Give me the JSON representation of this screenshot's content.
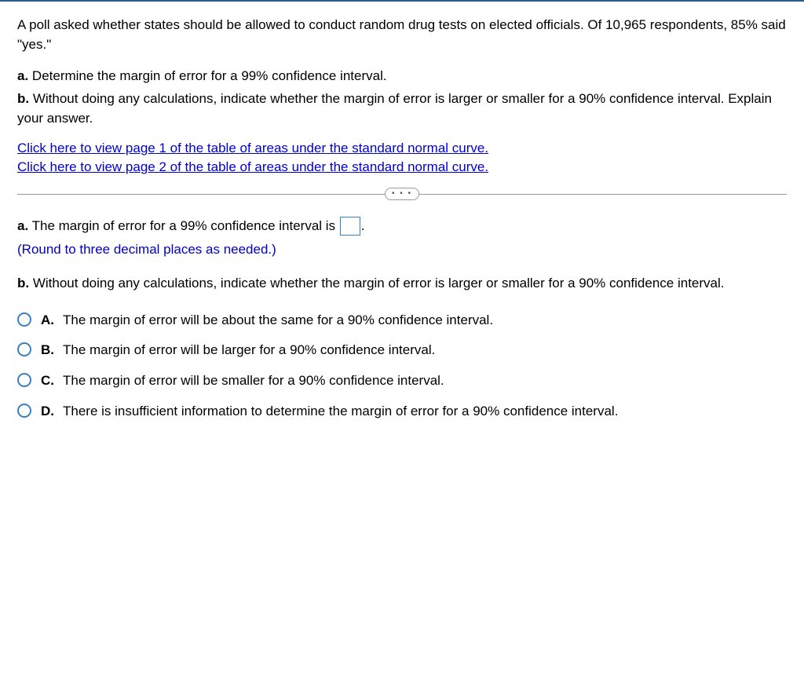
{
  "colors": {
    "top_border": "#2a5a8a",
    "link": "#0000d0",
    "hint": "#0000c8",
    "radio_border": "#3a7fbf",
    "input_border": "#3a7fbf",
    "divider": "#9a9a9a",
    "text": "#000000",
    "background": "#ffffff"
  },
  "intro": "A poll asked whether states should be allowed to conduct random drug tests on elected officials. Of 10,965 respondents, 85% said \"yes.\"",
  "parts": {
    "a_label": "a.",
    "a_text": " Determine the margin of error for a 99% confidence interval.",
    "b_label": "b.",
    "b_text": " Without doing any calculations, indicate whether the margin of error is larger or smaller for a 90% confidence interval. Explain your answer."
  },
  "links": {
    "page1": "Click here to view page 1 of the table of areas under the standard normal curve.",
    "page2": "Click here to view page 2 of the table of areas under the standard normal curve."
  },
  "divider_dots": "• • •",
  "answer_a": {
    "label": "a.",
    "before": " The margin of error for a 99% confidence interval is ",
    "after": ".",
    "value": "",
    "hint": "(Round to three decimal places as needed.)"
  },
  "question_b": {
    "label": "b.",
    "text": " Without doing any calculations, indicate whether the margin of error is larger or smaller for a 90% confidence interval."
  },
  "options": [
    {
      "letter": "A.",
      "text": "The margin of error will be about the same for a 90% confidence interval."
    },
    {
      "letter": "B.",
      "text": "The margin of error will be larger for a 90% confidence interval."
    },
    {
      "letter": "C.",
      "text": "The margin of error will be smaller for a 90% confidence interval."
    },
    {
      "letter": "D.",
      "text": "There is insufficient information to determine the margin of error for a 90% confidence interval."
    }
  ]
}
